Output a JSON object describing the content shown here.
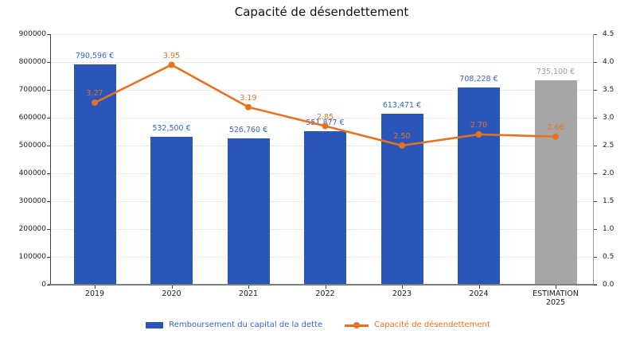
{
  "title": "Capacité de désendettement",
  "colors": {
    "bar_blue": "#2956B8",
    "bar_gray": "#A6A6A6",
    "label_blue": "#3565C8",
    "label_gray": "#9B9B9B",
    "line_orange": "#E8711F",
    "grid": "#EAEAEA",
    "axis": "#404040",
    "tick_text": "#1A1A1A"
  },
  "chart_data": {
    "type": "bar",
    "overlay": "line",
    "title": "Capacité de désendettement",
    "grid": true,
    "legend_position": "bottom",
    "categories": [
      "2019",
      "2020",
      "2021",
      "2022",
      "2023",
      "2024",
      "ESTIMATION\n2025"
    ],
    "series": [
      {
        "name": "Remboursement du capital de la dette",
        "type": "bar",
        "axis": "left",
        "values": [
          790596,
          532500,
          526760,
          551877,
          613471,
          708228,
          735100
        ],
        "value_labels": [
          "790,596 €",
          "532,500 €",
          "526,760 €",
          "551,877 €",
          "613,471 €",
          "708,228 €",
          "735,100 €"
        ],
        "bar_styles": [
          "blue",
          "blue",
          "blue",
          "blue",
          "blue",
          "blue",
          "gray"
        ]
      },
      {
        "name": "Capacité de désendettement",
        "type": "line",
        "axis": "right",
        "values": [
          3.27,
          3.95,
          3.19,
          2.85,
          2.5,
          2.7,
          2.66
        ],
        "value_labels": [
          "3.27",
          "3.95",
          "3.19",
          "2.85",
          "2.50",
          "2.70",
          "2.66"
        ]
      }
    ],
    "left_axis": {
      "min": 0,
      "max": 900000,
      "step": 100000,
      "tick_labels": [
        "0",
        "100000",
        "200000",
        "300000",
        "400000",
        "500000",
        "600000",
        "700000",
        "800000",
        "900000"
      ]
    },
    "right_axis": {
      "min": 0,
      "max": 4.5,
      "step": 0.5,
      "tick_labels": [
        "0.0",
        "0.5",
        "1.0",
        "1.5",
        "2.0",
        "2.5",
        "3.0",
        "3.5",
        "4.0",
        "4.5"
      ]
    }
  },
  "legend": {
    "items": [
      {
        "label": "Remboursement du capital de la dette",
        "swatch": "bar",
        "color": "#2956B8",
        "text_color": "#3565C8"
      },
      {
        "label": "Capacité de désendettement",
        "swatch": "line",
        "color": "#E8711F",
        "text_color": "#E8711F"
      }
    ]
  }
}
